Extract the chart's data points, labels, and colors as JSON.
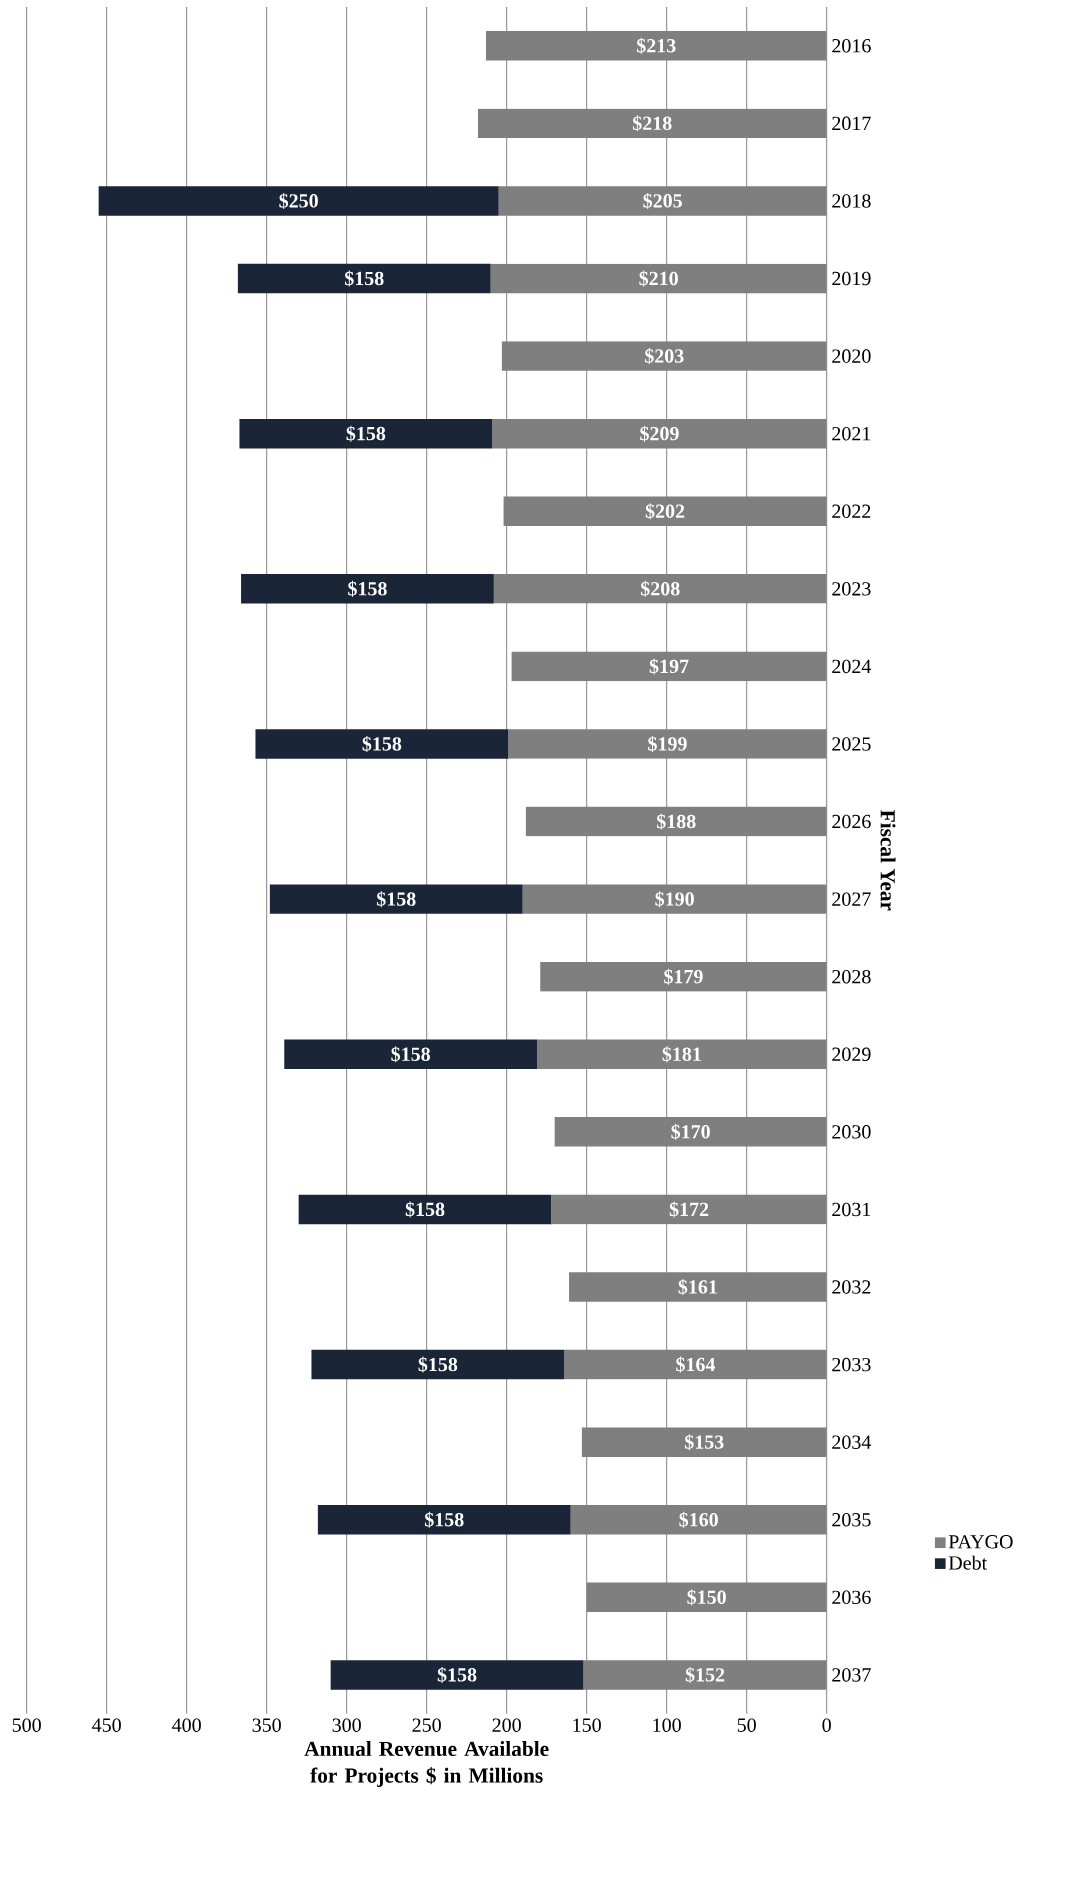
{
  "chart_data": {
    "type": "bar",
    "orientation": "horizontal",
    "stacked": true,
    "xlabel": "Annual Revenue Available for Projects $ in Millions",
    "ylabel": "Fiscal Year",
    "categories": [
      "2016",
      "2017",
      "2018",
      "2019",
      "2020",
      "2021",
      "2022",
      "2023",
      "2024",
      "2025",
      "2026",
      "2027",
      "2028",
      "2029",
      "2030",
      "2031",
      "2032",
      "2033",
      "2034",
      "2035",
      "2036",
      "2037"
    ],
    "series": [
      {
        "name": "PAYGO",
        "color": "#7f7f7f",
        "values": [
          213,
          218,
          205,
          210,
          203,
          209,
          202,
          208,
          197,
          199,
          188,
          190,
          179,
          181,
          170,
          172,
          161,
          164,
          153,
          160,
          150,
          152
        ],
        "value_labels": [
          "$213",
          "$218",
          "$205",
          "$210",
          "$203",
          "$209",
          "$202",
          "$208",
          "$197",
          "$199",
          "$188",
          "$190",
          "$179",
          "$181",
          "$170",
          "$172",
          "$161",
          "$164",
          "$153",
          "$160",
          "$150",
          "$152"
        ]
      },
      {
        "name": "Debt",
        "color": "#1b2538",
        "values": [
          null,
          null,
          250,
          158,
          null,
          158,
          null,
          158,
          null,
          158,
          null,
          158,
          null,
          158,
          null,
          158,
          null,
          158,
          null,
          158,
          null,
          158
        ],
        "value_labels": [
          null,
          null,
          "$250",
          "$158",
          null,
          "$158",
          null,
          "$158",
          null,
          "$158",
          null,
          "$158",
          null,
          "$158",
          null,
          "$158",
          null,
          "$158",
          null,
          "$158",
          null,
          "$158"
        ]
      }
    ],
    "xlim": [
      500,
      0
    ],
    "xticks": [
      0,
      50,
      100,
      150,
      200,
      250,
      300,
      350,
      400,
      450,
      500
    ],
    "grid": "x",
    "legend": "right"
  }
}
